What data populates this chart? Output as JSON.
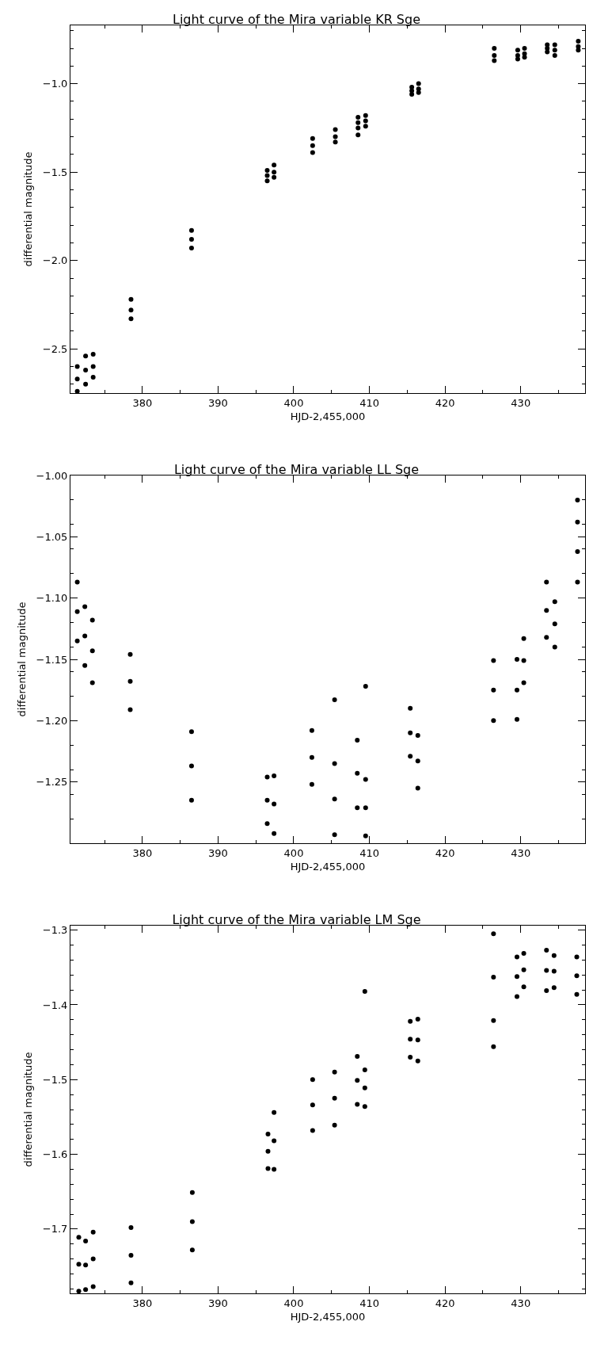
{
  "chart_data": [
    {
      "type": "scatter",
      "title": "Light curve of the Mira variable KR Sge",
      "xlabel": "HJD-2,455,000",
      "ylabel": "differential magnitude",
      "marker": "circle",
      "grid": false,
      "xlim": [
        370.5,
        438.5
      ],
      "xticks": [
        380,
        390,
        400,
        410,
        420,
        430
      ],
      "ylim": [
        -2.75,
        -0.67
      ],
      "yticks": [
        {
          "value": -1.0,
          "label": "−1.0"
        },
        {
          "value": -1.5,
          "label": "−1.5"
        },
        {
          "value": -2.0,
          "label": "−2.0"
        },
        {
          "value": -2.5,
          "label": "−2.5"
        }
      ],
      "series": [
        {
          "color": "#000000",
          "x": [
            371.4,
            371.4,
            371.4,
            372.5,
            372.5,
            372.5,
            373.5,
            373.5,
            373.5,
            378.5,
            378.5,
            378.5,
            386.5,
            386.5,
            386.5,
            396.5,
            396.5,
            396.5,
            397.4,
            397.4,
            397.4,
            402.5,
            402.5,
            402.5,
            405.5,
            405.5,
            405.5,
            408.5,
            408.5,
            408.5,
            408.5,
            409.5,
            409.5,
            409.5,
            415.6,
            415.6,
            415.6,
            416.5,
            416.5,
            416.5,
            426.5,
            426.5,
            426.5,
            429.6,
            429.6,
            429.6,
            430.5,
            430.5,
            430.5,
            433.5,
            433.5,
            433.5,
            434.5,
            434.5,
            434.5,
            437.6,
            437.6,
            437.6
          ],
          "values": [
            -2.6,
            -2.67,
            -2.74,
            -2.54,
            -2.62,
            -2.7,
            -2.53,
            -2.6,
            -2.66,
            -2.22,
            -2.28,
            -2.33,
            -1.83,
            -1.88,
            -1.93,
            -1.49,
            -1.52,
            -1.55,
            -1.46,
            -1.5,
            -1.53,
            -1.31,
            -1.35,
            -1.39,
            -1.26,
            -1.3,
            -1.33,
            -1.19,
            -1.22,
            -1.25,
            -1.29,
            -1.18,
            -1.21,
            -1.24,
            -1.02,
            -1.04,
            -1.06,
            -1.0,
            -1.03,
            -1.05,
            -0.8,
            -0.84,
            -0.87,
            -0.81,
            -0.84,
            -0.86,
            -0.8,
            -0.83,
            -0.85,
            -0.78,
            -0.8,
            -0.82,
            -0.78,
            -0.81,
            -0.84,
            -0.76,
            -0.79,
            -0.81
          ]
        }
      ]
    },
    {
      "type": "scatter",
      "title": "Light curve of the Mira variable LL Sge",
      "xlabel": "HJD-2,455,000",
      "ylabel": "differential magnitude",
      "marker": "circle",
      "grid": false,
      "xlim": [
        370.5,
        438.5
      ],
      "xticks": [
        380,
        390,
        400,
        410,
        420,
        430
      ],
      "ylim": [
        -1.3,
        -1.0
      ],
      "yticks": [
        {
          "value": -1.0,
          "label": "−1.00"
        },
        {
          "value": -1.05,
          "label": "−1.05"
        },
        {
          "value": -1.1,
          "label": "−1.10"
        },
        {
          "value": -1.15,
          "label": "−1.15"
        },
        {
          "value": -1.2,
          "label": "−1.20"
        },
        {
          "value": -1.25,
          "label": "−1.25"
        }
      ],
      "series": [
        {
          "color": "#000000",
          "x": [
            371.4,
            371.4,
            371.4,
            372.4,
            372.4,
            372.4,
            373.4,
            373.4,
            373.4,
            378.4,
            378.4,
            378.4,
            386.5,
            386.5,
            386.5,
            396.5,
            396.5,
            396.5,
            397.4,
            397.4,
            397.4,
            402.4,
            402.4,
            402.4,
            405.4,
            405.4,
            405.4,
            405.4,
            408.4,
            408.4,
            408.4,
            409.5,
            409.5,
            409.5,
            409.5,
            415.4,
            415.4,
            415.4,
            416.4,
            416.4,
            416.4,
            426.4,
            426.4,
            426.4,
            429.5,
            429.5,
            429.5,
            430.4,
            430.4,
            430.4,
            433.4,
            433.4,
            433.4,
            434.5,
            434.5,
            434.5,
            437.5,
            437.5,
            437.5,
            437.5
          ],
          "values": [
            -1.087,
            -1.111,
            -1.135,
            -1.107,
            -1.131,
            -1.155,
            -1.118,
            -1.143,
            -1.169,
            -1.146,
            -1.168,
            -1.191,
            -1.209,
            -1.237,
            -1.265,
            -1.246,
            -1.265,
            -1.284,
            -1.245,
            -1.268,
            -1.292,
            -1.208,
            -1.23,
            -1.252,
            -1.183,
            -1.235,
            -1.264,
            -1.293,
            -1.216,
            -1.243,
            -1.271,
            -1.172,
            -1.248,
            -1.271,
            -1.294,
            -1.19,
            -1.21,
            -1.229,
            -1.212,
            -1.233,
            -1.255,
            -1.151,
            -1.175,
            -1.2,
            -1.15,
            -1.175,
            -1.199,
            -1.133,
            -1.151,
            -1.169,
            -1.087,
            -1.11,
            -1.132,
            -1.103,
            -1.121,
            -1.14,
            -1.02,
            -1.038,
            -1.062,
            -1.087
          ]
        }
      ]
    },
    {
      "type": "scatter",
      "title": "Light curve of the Mira variable LM Sge",
      "xlabel": "HJD-2,455,000",
      "ylabel": "differential magnitude",
      "marker": "circle",
      "grid": false,
      "xlim": [
        370.5,
        438.5
      ],
      "xticks": [
        380,
        390,
        400,
        410,
        420,
        430
      ],
      "ylim": [
        -1.786,
        -1.294
      ],
      "yticks": [
        {
          "value": -1.3,
          "label": "−1.3"
        },
        {
          "value": -1.4,
          "label": "−1.4"
        },
        {
          "value": -1.5,
          "label": "−1.5"
        },
        {
          "value": -1.6,
          "label": "−1.6"
        },
        {
          "value": -1.7,
          "label": "−1.7"
        }
      ],
      "series": [
        {
          "color": "#000000",
          "x": [
            371.6,
            371.6,
            371.6,
            372.5,
            372.5,
            372.5,
            373.5,
            373.5,
            373.5,
            378.5,
            378.5,
            378.5,
            386.6,
            386.6,
            386.6,
            396.6,
            396.6,
            396.6,
            397.4,
            397.4,
            397.4,
            402.5,
            402.5,
            402.5,
            405.4,
            405.4,
            405.4,
            408.4,
            408.4,
            408.4,
            409.4,
            409.4,
            409.4,
            409.4,
            415.4,
            415.4,
            415.4,
            416.4,
            416.4,
            416.4,
            426.4,
            426.4,
            426.4,
            426.4,
            429.5,
            429.5,
            429.5,
            430.4,
            430.4,
            430.4,
            433.4,
            433.4,
            433.4,
            434.4,
            434.4,
            434.4,
            437.4,
            437.4,
            437.4
          ],
          "values": [
            -1.711,
            -1.747,
            -1.783,
            -1.716,
            -1.748,
            -1.781,
            -1.704,
            -1.74,
            -1.777,
            -1.698,
            -1.735,
            -1.772,
            -1.651,
            -1.69,
            -1.728,
            -1.573,
            -1.596,
            -1.619,
            -1.544,
            -1.582,
            -1.62,
            -1.5,
            -1.534,
            -1.568,
            -1.49,
            -1.525,
            -1.561,
            -1.469,
            -1.501,
            -1.533,
            -1.382,
            -1.487,
            -1.511,
            -1.536,
            -1.422,
            -1.446,
            -1.47,
            -1.419,
            -1.447,
            -1.475,
            -1.305,
            -1.363,
            -1.421,
            -1.456,
            -1.336,
            -1.362,
            -1.389,
            -1.331,
            -1.353,
            -1.376,
            -1.327,
            -1.354,
            -1.381,
            -1.334,
            -1.355,
            -1.377,
            -1.336,
            -1.361,
            -1.386
          ]
        }
      ]
    }
  ]
}
